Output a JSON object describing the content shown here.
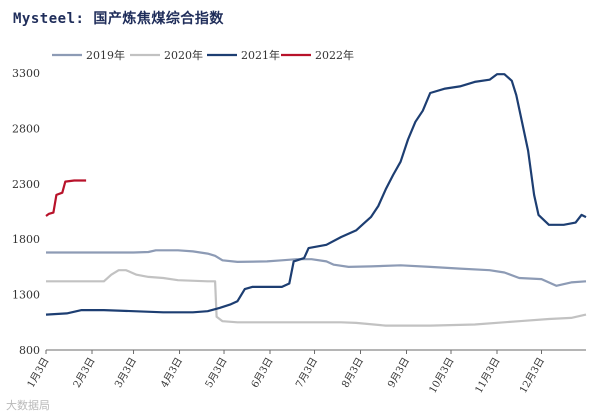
{
  "title": "Mysteel: 国产炼焦煤综合指数",
  "watermark": "大数据局",
  "chart_data": {
    "type": "line",
    "title": "Mysteel: 国产炼焦煤综合指数",
    "xlabel": "",
    "ylabel": "",
    "x_ticks": [
      "1月3日",
      "2月3日",
      "3月3日",
      "4月3日",
      "5月3日",
      "6月3日",
      "7月3日",
      "8月3日",
      "9月3日",
      "10月3日",
      "11月3日",
      "12月3日"
    ],
    "x_tick_days": [
      1,
      32,
      60,
      91,
      121,
      152,
      182,
      213,
      244,
      274,
      305,
      335
    ],
    "xlim": [
      1,
      365
    ],
    "ylim": [
      800,
      3400
    ],
    "y_ticks": [
      800,
      1300,
      1800,
      2300,
      2800,
      3300
    ],
    "grid": false,
    "legend_position": "top",
    "series": [
      {
        "name": "2019年",
        "color": "#8d9bb5",
        "points": [
          [
            1,
            1680
          ],
          [
            40,
            1680
          ],
          [
            60,
            1680
          ],
          [
            70,
            1685
          ],
          [
            75,
            1700
          ],
          [
            90,
            1700
          ],
          [
            100,
            1690
          ],
          [
            110,
            1670
          ],
          [
            115,
            1650
          ],
          [
            120,
            1610
          ],
          [
            130,
            1595
          ],
          [
            150,
            1600
          ],
          [
            160,
            1610
          ],
          [
            170,
            1620
          ],
          [
            180,
            1620
          ],
          [
            190,
            1600
          ],
          [
            195,
            1570
          ],
          [
            205,
            1550
          ],
          [
            220,
            1555
          ],
          [
            240,
            1565
          ],
          [
            260,
            1550
          ],
          [
            280,
            1535
          ],
          [
            300,
            1520
          ],
          [
            310,
            1500
          ],
          [
            320,
            1450
          ],
          [
            335,
            1440
          ],
          [
            345,
            1380
          ],
          [
            355,
            1410
          ],
          [
            365,
            1420
          ]
        ]
      },
      {
        "name": "2020年",
        "color": "#c2c2c2",
        "points": [
          [
            1,
            1420
          ],
          [
            40,
            1420
          ],
          [
            45,
            1480
          ],
          [
            50,
            1520
          ],
          [
            55,
            1520
          ],
          [
            62,
            1480
          ],
          [
            70,
            1460
          ],
          [
            80,
            1450
          ],
          [
            90,
            1430
          ],
          [
            110,
            1420
          ],
          [
            115,
            1420
          ],
          [
            116,
            1100
          ],
          [
            120,
            1060
          ],
          [
            130,
            1050
          ],
          [
            160,
            1050
          ],
          [
            200,
            1050
          ],
          [
            210,
            1045
          ],
          [
            230,
            1020
          ],
          [
            260,
            1020
          ],
          [
            290,
            1030
          ],
          [
            320,
            1060
          ],
          [
            340,
            1080
          ],
          [
            355,
            1090
          ],
          [
            365,
            1120
          ]
        ]
      },
      {
        "name": "2021年",
        "color": "#1d3e72",
        "points": [
          [
            1,
            1120
          ],
          [
            15,
            1130
          ],
          [
            25,
            1160
          ],
          [
            40,
            1160
          ],
          [
            60,
            1150
          ],
          [
            80,
            1140
          ],
          [
            100,
            1140
          ],
          [
            110,
            1150
          ],
          [
            118,
            1180
          ],
          [
            125,
            1210
          ],
          [
            130,
            1240
          ],
          [
            135,
            1350
          ],
          [
            140,
            1370
          ],
          [
            160,
            1370
          ],
          [
            165,
            1400
          ],
          [
            168,
            1600
          ],
          [
            175,
            1630
          ],
          [
            178,
            1720
          ],
          [
            190,
            1750
          ],
          [
            200,
            1820
          ],
          [
            210,
            1880
          ],
          [
            215,
            1940
          ],
          [
            220,
            2000
          ],
          [
            225,
            2100
          ],
          [
            230,
            2250
          ],
          [
            235,
            2380
          ],
          [
            240,
            2500
          ],
          [
            245,
            2700
          ],
          [
            250,
            2860
          ],
          [
            255,
            2960
          ],
          [
            260,
            3120
          ],
          [
            270,
            3160
          ],
          [
            280,
            3180
          ],
          [
            290,
            3220
          ],
          [
            300,
            3240
          ],
          [
            305,
            3290
          ],
          [
            310,
            3290
          ],
          [
            315,
            3230
          ],
          [
            318,
            3100
          ],
          [
            322,
            2850
          ],
          [
            326,
            2600
          ],
          [
            330,
            2200
          ],
          [
            333,
            2020
          ],
          [
            340,
            1930
          ],
          [
            350,
            1930
          ],
          [
            358,
            1950
          ],
          [
            362,
            2020
          ],
          [
            365,
            2000
          ]
        ]
      },
      {
        "name": "2022年",
        "color": "#b8122a",
        "points": [
          [
            1,
            2010
          ],
          [
            3,
            2030
          ],
          [
            6,
            2040
          ],
          [
            8,
            2200
          ],
          [
            12,
            2220
          ],
          [
            14,
            2320
          ],
          [
            20,
            2330
          ],
          [
            25,
            2330
          ],
          [
            28,
            2330
          ]
        ]
      }
    ]
  }
}
